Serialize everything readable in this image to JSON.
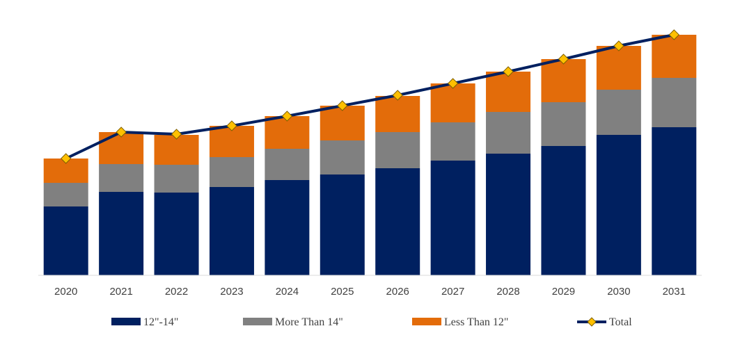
{
  "chart_data": {
    "type": "bar",
    "stacked": true,
    "categories": [
      "2020",
      "2021",
      "2022",
      "2023",
      "2024",
      "2025",
      "2026",
      "2027",
      "2028",
      "2029",
      "2030",
      "2031"
    ],
    "series": [
      {
        "name": "12\"-14\"",
        "color": "#002060",
        "values": [
          99,
          120,
          119,
          127,
          137,
          145,
          154,
          165,
          175,
          186,
          202,
          213
        ]
      },
      {
        "name": "More Than 14\"",
        "color": "#808080",
        "values": [
          34,
          40,
          40,
          43,
          45,
          49,
          52,
          55,
          60,
          63,
          65,
          71
        ]
      },
      {
        "name": "Less Than 12\"",
        "color": "#E36C0A",
        "values": [
          35,
          46,
          43,
          45,
          47,
          50,
          52,
          56,
          58,
          62,
          63,
          62
        ]
      }
    ],
    "line": {
      "name": "Total",
      "color": "#002060",
      "marker_color": "#FFC000",
      "values": [
        168,
        206,
        203,
        215,
        229,
        244,
        259,
        276,
        293,
        311,
        330,
        346
      ]
    },
    "ylim": [
      0,
      350
    ],
    "grid": false,
    "show_y_axis": false,
    "legend_position": "bottom"
  }
}
